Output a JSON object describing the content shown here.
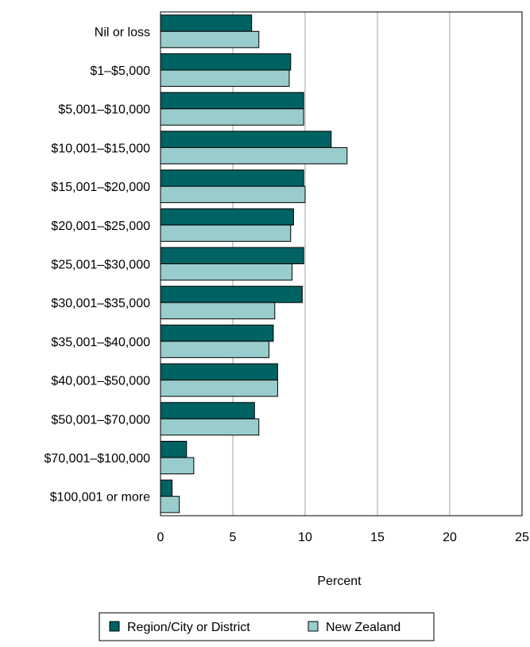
{
  "chart_data": {
    "type": "bar",
    "orientation": "horizontal",
    "categories": [
      "Nil or loss",
      "$1–$5,000",
      "$5,001–$10,000",
      "$10,001–$15,000",
      "$15,001–$20,000",
      "$20,001–$25,000",
      "$25,001–$30,000",
      "$30,001–$35,000",
      "$35,001–$40,000",
      "$40,001–$50,000",
      "$50,001–$70,000",
      "$70,001–$100,000",
      "$100,001 or more"
    ],
    "series": [
      {
        "name": "Region/City or District",
        "color": "#006262",
        "values": [
          6.3,
          9.0,
          9.9,
          11.8,
          9.9,
          9.2,
          9.9,
          9.8,
          7.8,
          8.1,
          6.5,
          1.8,
          0.8
        ]
      },
      {
        "name": "New Zealand",
        "color": "#99cccc",
        "values": [
          6.8,
          8.9,
          9.9,
          12.9,
          10.0,
          9.0,
          9.1,
          7.9,
          7.5,
          8.1,
          6.8,
          2.3,
          1.3
        ]
      }
    ],
    "xlabel": "Percent",
    "xlim": [
      0,
      25
    ],
    "xticks": [
      "0",
      "5",
      "10",
      "15",
      "20",
      "25"
    ],
    "grid": "vertical",
    "legend": "bottom"
  }
}
